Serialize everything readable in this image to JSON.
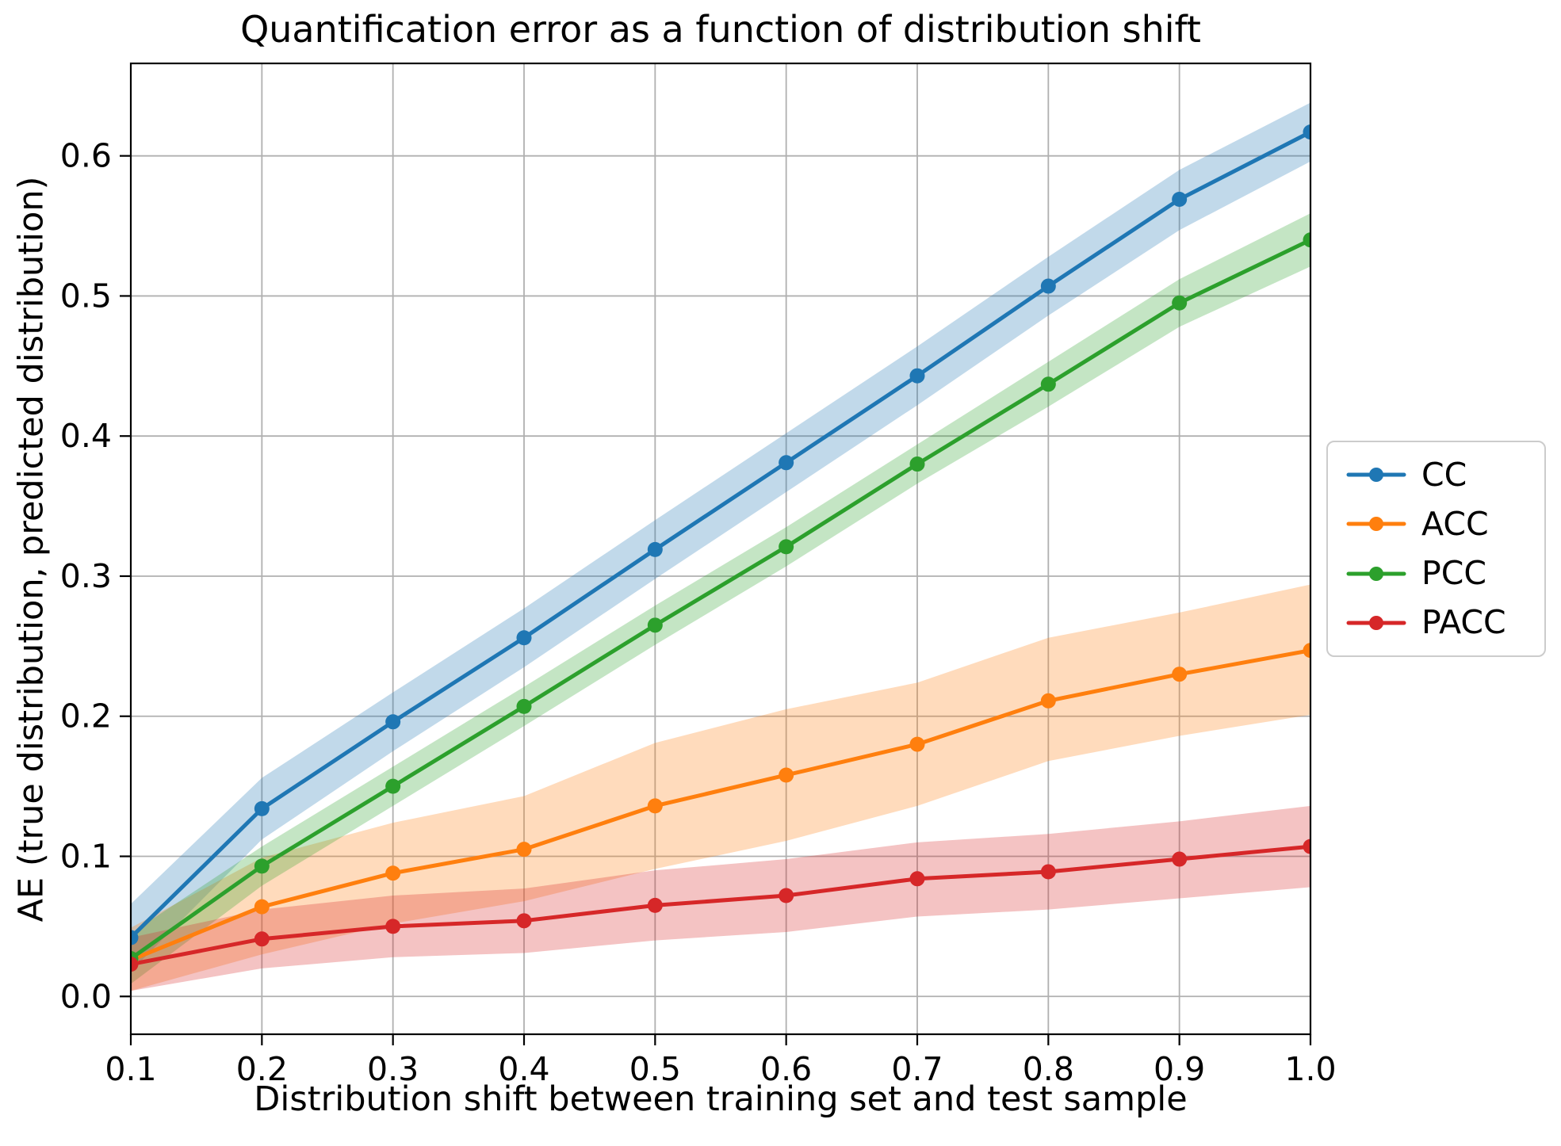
{
  "title": "Quantification error as a function of distribution shift",
  "chart_data": {
    "type": "line",
    "title": "Quantification error as a function of distribution shift",
    "xlabel": "Distribution shift between training set and test sample",
    "ylabel": "AE (true distribution, predicted distribution)",
    "x": [
      0.1,
      0.2,
      0.3,
      0.4,
      0.5,
      0.6,
      0.7,
      0.8,
      0.9,
      1.0
    ],
    "xtick_labels": [
      "0.1",
      "0.2",
      "0.3",
      "0.4",
      "0.5",
      "0.6",
      "0.7",
      "0.8",
      "0.9",
      "1.0"
    ],
    "ytick_values": [
      0.0,
      0.1,
      0.2,
      0.3,
      0.4,
      0.5,
      0.6
    ],
    "ytick_labels": [
      "0.0",
      "0.1",
      "0.2",
      "0.3",
      "0.4",
      "0.5",
      "0.6"
    ],
    "xlim": [
      0.1,
      1.0
    ],
    "ylim": [
      -0.027,
      0.666
    ],
    "grid": true,
    "grid_color": "#b0b0b0",
    "legend_position": "right-outside",
    "band_opacity": 0.28,
    "series": [
      {
        "name": "CC",
        "color": "#1f77b4",
        "values": [
          0.042,
          0.134,
          0.196,
          0.256,
          0.319,
          0.381,
          0.443,
          0.507,
          0.569,
          0.617
        ],
        "band_lower": [
          0.018,
          0.112,
          0.175,
          0.235,
          0.298,
          0.36,
          0.422,
          0.486,
          0.547,
          0.596
        ],
        "band_upper": [
          0.066,
          0.156,
          0.217,
          0.277,
          0.34,
          0.402,
          0.464,
          0.528,
          0.59,
          0.638
        ]
      },
      {
        "name": "ACC",
        "color": "#ff7f0e",
        "values": [
          0.026,
          0.064,
          0.088,
          0.105,
          0.136,
          0.158,
          0.18,
          0.211,
          0.23,
          0.247
        ],
        "band_lower": [
          0.004,
          0.03,
          0.052,
          0.068,
          0.091,
          0.111,
          0.136,
          0.168,
          0.186,
          0.201
        ],
        "band_upper": [
          0.049,
          0.099,
          0.124,
          0.143,
          0.181,
          0.205,
          0.224,
          0.256,
          0.274,
          0.294
        ]
      },
      {
        "name": "PCC",
        "color": "#2ca02c",
        "values": [
          0.027,
          0.093,
          0.15,
          0.207,
          0.265,
          0.321,
          0.38,
          0.437,
          0.495,
          0.54
        ],
        "band_lower": [
          0.009,
          0.079,
          0.136,
          0.193,
          0.251,
          0.307,
          0.366,
          0.421,
          0.478,
          0.521
        ],
        "band_upper": [
          0.045,
          0.107,
          0.164,
          0.221,
          0.279,
          0.335,
          0.394,
          0.453,
          0.512,
          0.559
        ]
      },
      {
        "name": "PACC",
        "color": "#d62728",
        "values": [
          0.023,
          0.041,
          0.05,
          0.054,
          0.065,
          0.072,
          0.084,
          0.089,
          0.098,
          0.107
        ],
        "band_lower": [
          0.004,
          0.02,
          0.028,
          0.031,
          0.04,
          0.046,
          0.057,
          0.062,
          0.07,
          0.078
        ],
        "band_upper": [
          0.042,
          0.062,
          0.072,
          0.077,
          0.09,
          0.098,
          0.11,
          0.116,
          0.125,
          0.136
        ]
      }
    ]
  }
}
